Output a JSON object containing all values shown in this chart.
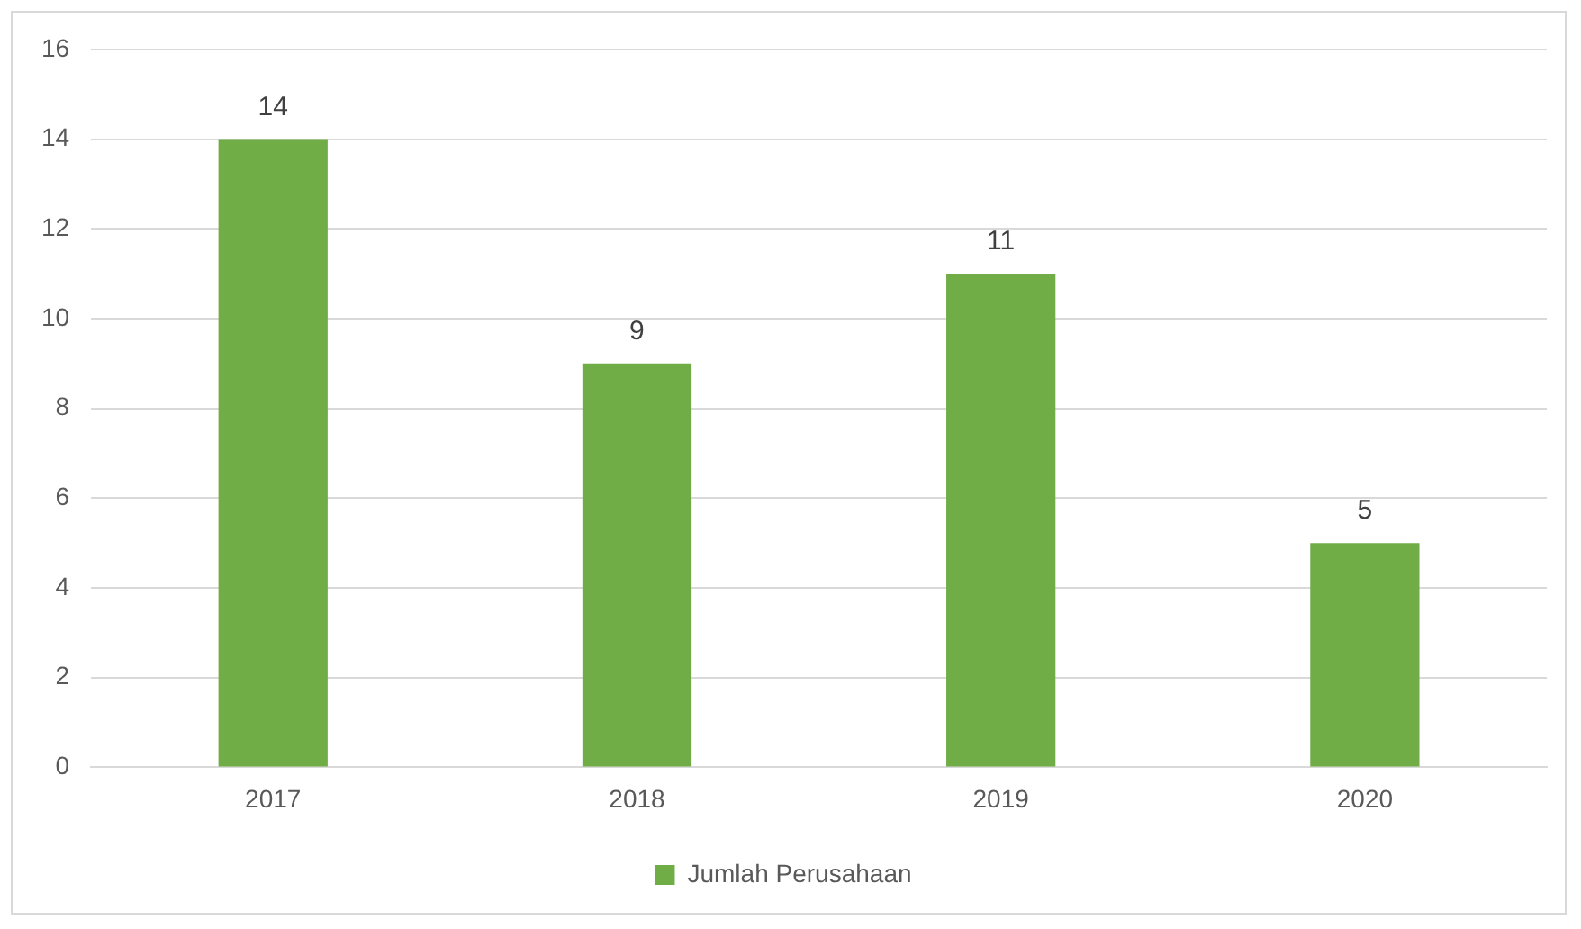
{
  "chart_data": {
    "type": "bar",
    "categories": [
      "2017",
      "2018",
      "2019",
      "2020"
    ],
    "series": [
      {
        "name": "Jumlah Perusahaan",
        "color": "#70ad47",
        "values": [
          14,
          9,
          11,
          5
        ]
      }
    ],
    "ylim": [
      0,
      16
    ],
    "yticks": [
      0,
      2,
      4,
      6,
      8,
      10,
      12,
      14,
      16
    ],
    "grid": "y",
    "legend": "bottom",
    "data_labels": true
  }
}
